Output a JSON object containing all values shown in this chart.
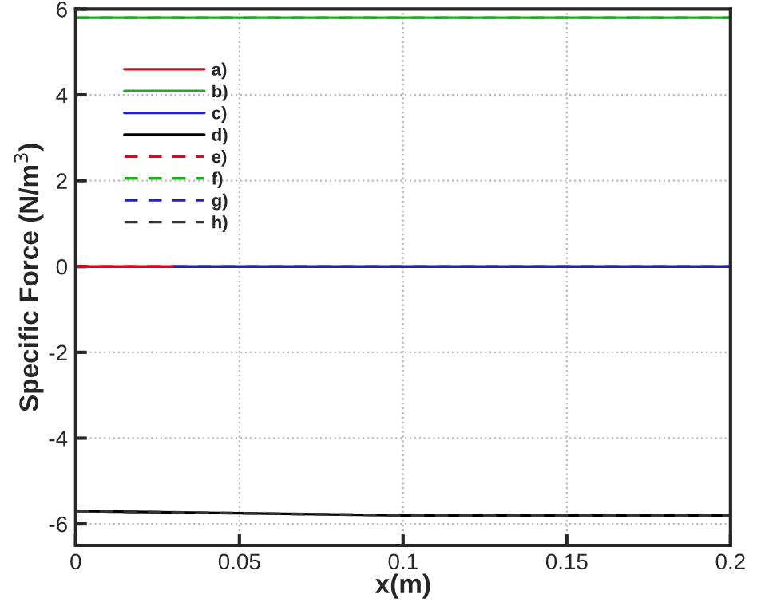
{
  "chart_data": {
    "type": "line",
    "xlabel": "x(m)",
    "ylabel": "Specific Force (N/m$^{3}$)",
    "x": [
      0,
      0.05,
      0.1,
      0.15,
      0.2
    ],
    "series": [
      {
        "name": "a)",
        "color": "#e8001c",
        "x": [
          0,
          0.03
        ],
        "values": [
          0.0,
          0.0
        ],
        "line_style": "solid"
      },
      {
        "name": "b)",
        "color": "#22aa22",
        "values": [
          5.8,
          5.8,
          5.8,
          5.8,
          5.8
        ],
        "line_style": "solid"
      },
      {
        "name": "c)",
        "color": "#2222aa",
        "x": [
          0.03,
          0.05,
          0.1,
          0.15,
          0.2
        ],
        "values": [
          0.0,
          0.0,
          0.0,
          0.0,
          0.0
        ],
        "line_style": "solid"
      },
      {
        "name": "d)",
        "color": "#000000",
        "values": [
          -5.7,
          -5.75,
          -5.8,
          -5.8,
          -5.8
        ],
        "line_style": "solid"
      },
      {
        "name": "e)",
        "color": "#e8001c",
        "x": [
          0,
          0.03
        ],
        "values": [
          0.0,
          0.0
        ],
        "line_style": "dashed"
      },
      {
        "name": "f)",
        "color": "#22aa22",
        "values": [
          5.8,
          5.8,
          5.8,
          5.8,
          5.8
        ],
        "line_style": "dashed"
      },
      {
        "name": "g)",
        "color": "#2222aa",
        "x": [
          0.03,
          0.05,
          0.1,
          0.15,
          0.2
        ],
        "values": [
          0.0,
          0.0,
          0.0,
          0.0,
          0.0
        ],
        "line_style": "dashed"
      },
      {
        "name": "h)",
        "color": "#333333",
        "values": [
          -5.7,
          -5.75,
          -5.8,
          -5.8,
          -5.8
        ],
        "line_style": "dashed"
      }
    ],
    "xlim": [
      0,
      0.2
    ],
    "ylim": [
      -6.5,
      6
    ],
    "xticks": [
      0,
      0.05,
      0.1,
      0.15,
      0.2
    ],
    "yticks": [
      -6,
      -4,
      -2,
      0,
      2,
      4,
      6
    ],
    "grid": true,
    "legend": "top left"
  }
}
